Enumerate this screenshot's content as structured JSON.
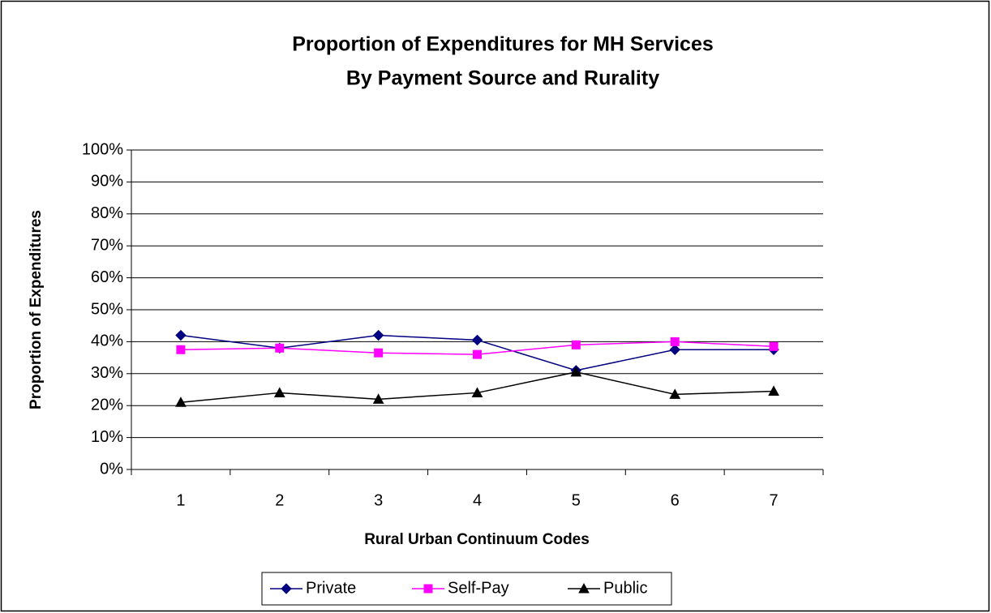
{
  "chart_data": {
    "type": "line",
    "title": [
      "Proportion of Expenditures for MH Services",
      "By Payment Source and Rurality"
    ],
    "x_label": "Rural Urban Continuum Codes",
    "y_label": "Proportion of Expenditures",
    "categories": [
      "1",
      "2",
      "3",
      "4",
      "5",
      "6",
      "7"
    ],
    "series": [
      {
        "name": "Private",
        "color": "#000080",
        "marker": "diamond",
        "values": [
          42,
          38,
          42,
          40.5,
          31,
          37.5,
          37.5
        ]
      },
      {
        "name": "Self-Pay",
        "color": "#ff00ff",
        "marker": "square",
        "values": [
          37.5,
          38,
          36.5,
          36,
          39,
          40,
          38.5
        ]
      },
      {
        "name": "Public",
        "color": "#000000",
        "marker": "triangle",
        "values": [
          21,
          24,
          22,
          24,
          30.5,
          23.5,
          24.5
        ]
      }
    ],
    "ylim": [
      0,
      100
    ],
    "yticks": [
      {
        "value": 0,
        "label": "0%"
      },
      {
        "value": 10,
        "label": "10%"
      },
      {
        "value": 20,
        "label": "20%"
      },
      {
        "value": 30,
        "label": "30%"
      },
      {
        "value": 40,
        "label": "40%"
      },
      {
        "value": 50,
        "label": "50%"
      },
      {
        "value": 60,
        "label": "60%"
      },
      {
        "value": 70,
        "label": "70%"
      },
      {
        "value": 80,
        "label": "80%"
      },
      {
        "value": 90,
        "label": "90%"
      },
      {
        "value": 100,
        "label": "100%"
      }
    ],
    "grid": true,
    "legend": "bottom"
  }
}
